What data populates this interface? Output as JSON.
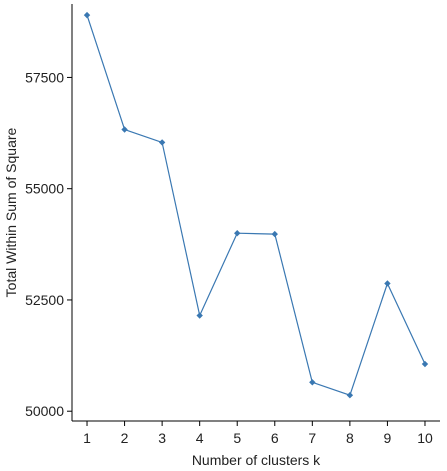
{
  "chart_data": {
    "type": "line",
    "title": "",
    "xlabel": "Number of clusters k",
    "ylabel": "Total Within Sum of Square",
    "x": [
      1,
      2,
      3,
      4,
      5,
      6,
      7,
      8,
      9,
      10
    ],
    "y": [
      58900,
      56330,
      56040,
      52150,
      54000,
      53980,
      50650,
      50360,
      52870,
      51060
    ],
    "x_ticks": [
      "1",
      "2",
      "3",
      "4",
      "5",
      "6",
      "7",
      "8",
      "9",
      "10"
    ],
    "y_ticks": [
      50000,
      52500,
      55000,
      57500
    ],
    "y_tick_labels": [
      "50000",
      "52500",
      "55000",
      "57500"
    ],
    "ylim": [
      49780,
      59150
    ],
    "xlim": [
      0.6,
      10.4
    ],
    "grid": false,
    "colors": {
      "line": "#3A78B2",
      "marker": "#3A78B2",
      "axis": "#000000"
    }
  }
}
